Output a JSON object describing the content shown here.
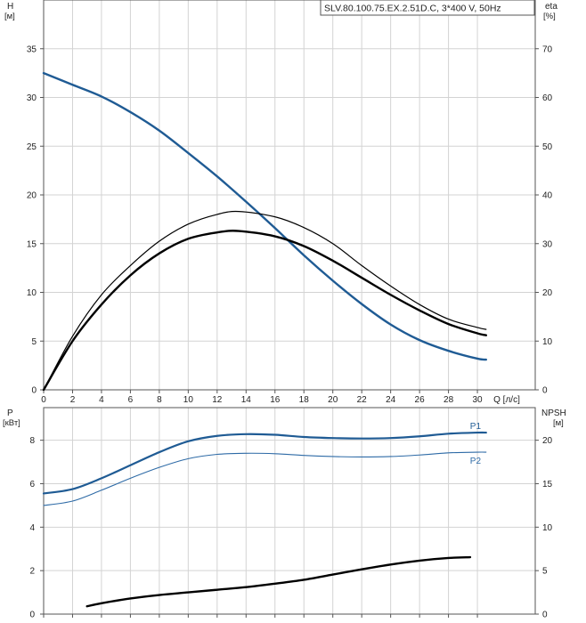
{
  "chart_data": [
    {
      "type": "line",
      "title": "SLV.80.100.75.EX.2.51D.C, 3*400 V, 50Hz",
      "xlabel": "Q [л/с]",
      "x_unit_label": "Q [л/с]",
      "ylabel_left": "H",
      "ylabel_left_unit": "[м]",
      "ylabel_right": "eta",
      "ylabel_right_unit": "[%]",
      "xlim": [
        0,
        34
      ],
      "ylim_left": [
        0,
        40
      ],
      "ylim_right": [
        0,
        80
      ],
      "x_ticks": [
        0,
        2,
        4,
        6,
        8,
        10,
        12,
        14,
        16,
        18,
        20,
        22,
        24,
        26,
        28,
        30
      ],
      "y_left_ticks": [
        0,
        5,
        10,
        15,
        20,
        25,
        30,
        35
      ],
      "y_right_ticks": [
        0,
        10,
        20,
        30,
        40,
        50,
        60,
        70
      ],
      "grid": true,
      "series": [
        {
          "axis": "left",
          "color": "#1f5b94",
          "stroke": 2.4,
          "x": [
            0,
            2,
            4,
            6,
            8,
            10,
            12,
            14,
            16,
            18,
            20,
            22,
            24,
            26,
            28,
            30,
            30.6
          ],
          "values": [
            32.5,
            31.3,
            30.1,
            28.5,
            26.6,
            24.3,
            21.9,
            19.3,
            16.6,
            13.8,
            11.2,
            8.8,
            6.7,
            5.1,
            4.0,
            3.2,
            3.1
          ]
        },
        {
          "axis": "right",
          "color": "#000000",
          "stroke": 1.2,
          "x": [
            0,
            2,
            4,
            6,
            8,
            10,
            12,
            13.5,
            16,
            18,
            20,
            22,
            24,
            26,
            28,
            30,
            30.6
          ],
          "values": [
            0,
            11,
            19.5,
            25.5,
            30.5,
            34,
            36,
            36.6,
            35.5,
            33.3,
            30,
            25.5,
            21.3,
            17.5,
            14.5,
            12.8,
            12.4
          ]
        },
        {
          "axis": "right",
          "color": "#000000",
          "stroke": 2.4,
          "x": [
            0,
            2,
            4,
            6,
            8,
            10,
            12,
            13.5,
            16,
            18,
            20,
            22,
            24,
            26,
            28,
            30,
            30.6
          ],
          "values": [
            0,
            10,
            17.5,
            23.5,
            28,
            31,
            32.3,
            32.6,
            31.5,
            29.5,
            26.5,
            23,
            19.5,
            16.3,
            13.5,
            11.6,
            11.2
          ]
        }
      ]
    },
    {
      "type": "line",
      "xlim": [
        0,
        34
      ],
      "ylabel_left": "P",
      "ylabel_left_unit": "[кВт]",
      "ylabel_right": "NPSH",
      "ylabel_right_unit": "[м]",
      "ylim_left": [
        0,
        9.5
      ],
      "ylim_right": [
        0,
        23.75
      ],
      "y_left_ticks": [
        0,
        2,
        4,
        6,
        8
      ],
      "y_right_ticks": [
        0,
        5,
        10,
        15,
        20
      ],
      "grid": true,
      "series": [
        {
          "name": "P1",
          "axis": "left",
          "color": "#1f5b94",
          "stroke": 2.2,
          "x": [
            0,
            2,
            4,
            6,
            8,
            10,
            12,
            14,
            16,
            18,
            20,
            22,
            24,
            26,
            28,
            30,
            30.6
          ],
          "values": [
            5.55,
            5.75,
            6.25,
            6.85,
            7.45,
            7.95,
            8.2,
            8.28,
            8.25,
            8.15,
            8.1,
            8.08,
            8.1,
            8.18,
            8.3,
            8.35,
            8.35
          ]
        },
        {
          "name": "P2",
          "axis": "left",
          "color": "#2d6aa6",
          "stroke": 1.1,
          "x": [
            0,
            2,
            4,
            6,
            8,
            10,
            12,
            14,
            16,
            18,
            20,
            22,
            24,
            26,
            28,
            30,
            30.6
          ],
          "values": [
            5.0,
            5.2,
            5.7,
            6.25,
            6.75,
            7.15,
            7.35,
            7.4,
            7.38,
            7.3,
            7.25,
            7.23,
            7.25,
            7.32,
            7.42,
            7.45,
            7.45
          ]
        },
        {
          "name": "",
          "axis": "right",
          "color": "#000000",
          "stroke": 2.4,
          "x": [
            3,
            4,
            6,
            8,
            10,
            12,
            14,
            16,
            18,
            20,
            22,
            24,
            26,
            28,
            29.5
          ],
          "values": [
            0.9,
            1.25,
            1.8,
            2.2,
            2.5,
            2.8,
            3.1,
            3.5,
            3.95,
            4.55,
            5.15,
            5.7,
            6.15,
            6.45,
            6.55
          ]
        }
      ]
    }
  ]
}
